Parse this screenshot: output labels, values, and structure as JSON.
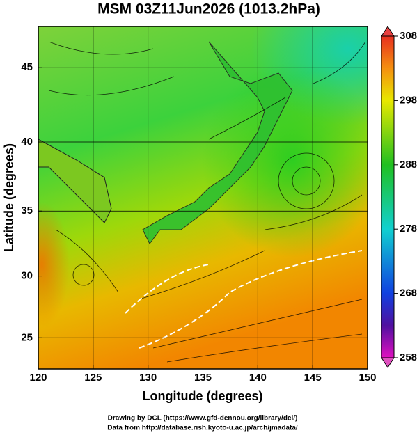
{
  "chart_data": {
    "type": "map",
    "title": "MSM 03Z11Jun2026 (1013.2hPa)",
    "xlabel": "Longitude (degrees)",
    "ylabel": "Latitude  (degrees)",
    "xlim": [
      120,
      150
    ],
    "xticks": [
      120,
      125,
      130,
      135,
      140,
      145,
      150
    ],
    "ylim": [
      22.4,
      47.6
    ],
    "yticks": [
      25,
      30,
      35,
      40,
      45
    ],
    "projection": "mercator",
    "grid": true,
    "colorbar": {
      "lim": [
        258,
        308
      ],
      "ticks": [
        258,
        268,
        278,
        288,
        298,
        308
      ]
    }
  },
  "credits": [
    "Drawing by DCL (https://www.gfd-dennou.org/library/dcl/)",
    "Data from http://database.rish.kyoto-u.ac.jp/arch/jmadata/"
  ]
}
